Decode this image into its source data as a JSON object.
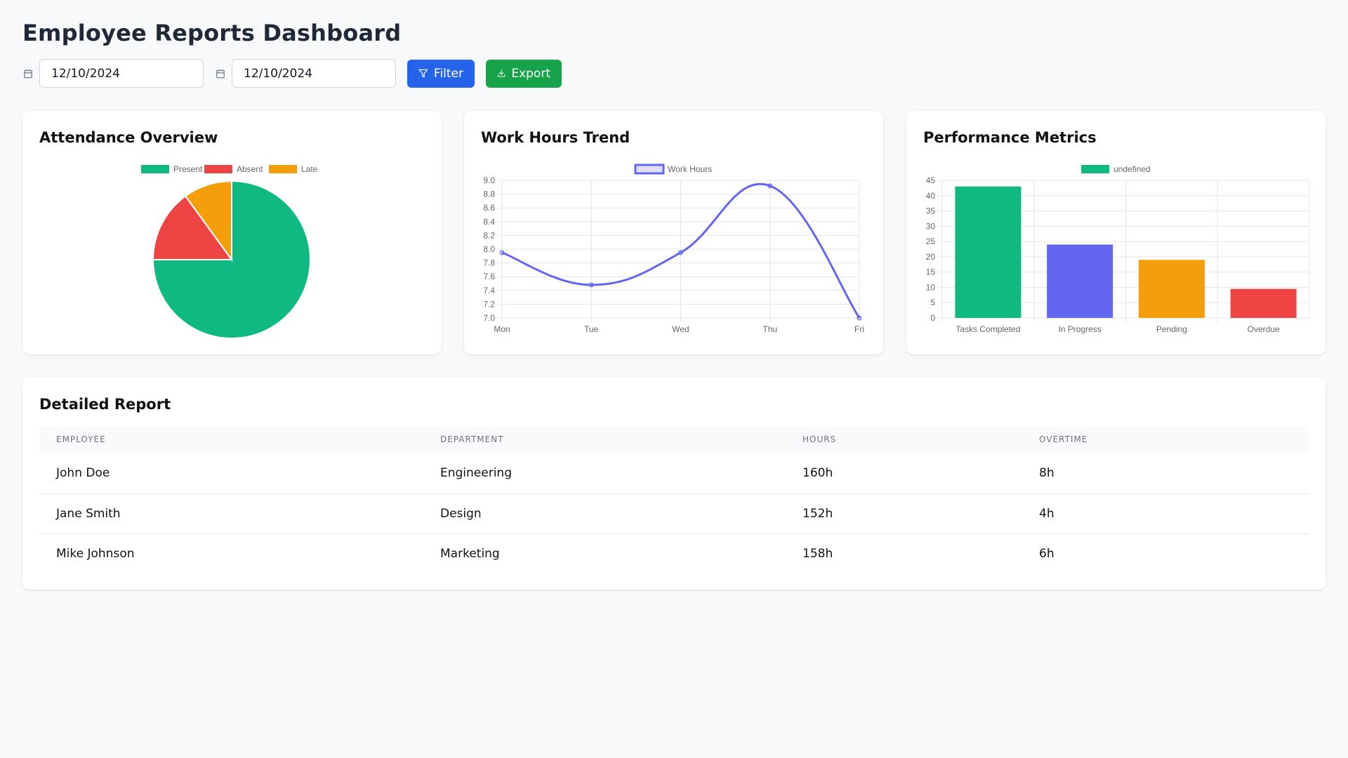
{
  "page": {
    "title": "Employee Reports Dashboard"
  },
  "toolbar": {
    "start_date": "12/10/2024",
    "end_date": "12/10/2024",
    "filter_label": "Filter",
    "export_label": "Export"
  },
  "cards": {
    "attendance_title": "Attendance Overview",
    "workhours_title": "Work Hours Trend",
    "performance_title": "Performance Metrics"
  },
  "chart_data": [
    {
      "type": "pie",
      "labels": [
        "Present",
        "Absent",
        "Late"
      ],
      "values": [
        75,
        15,
        10
      ],
      "colors": [
        "#10b981",
        "#ef4444",
        "#f59e0b"
      ],
      "legend": "top"
    },
    {
      "type": "line",
      "categories": [
        "Mon",
        "Tue",
        "Wed",
        "Thu",
        "Fri"
      ],
      "series": [
        {
          "name": "Work Hours",
          "values": [
            7.95,
            7.48,
            7.95,
            8.92,
            7.0
          ]
        }
      ],
      "ylim": [
        7.0,
        9.0
      ],
      "yticks": [
        "9.0",
        "8.8",
        "8.6",
        "8.4",
        "8.2",
        "8.0",
        "7.8",
        "7.6",
        "7.4",
        "7.2",
        "7.0"
      ],
      "color": "#6366f1",
      "grid": true,
      "legend": "top"
    },
    {
      "type": "bar",
      "categories": [
        "Tasks Completed",
        "In Progress",
        "Pending",
        "Overdue"
      ],
      "series": [
        {
          "name": "undefined",
          "values": [
            43,
            24,
            19,
            9.5
          ]
        }
      ],
      "colors": [
        "#10b981",
        "#6366f1",
        "#f59e0b",
        "#ef4444"
      ],
      "ylim": [
        0,
        45
      ],
      "yticks": [
        "45",
        "40",
        "35",
        "30",
        "25",
        "20",
        "15",
        "10",
        "5",
        "0"
      ],
      "grid": true,
      "legend": "top"
    }
  ],
  "report": {
    "title": "Detailed Report",
    "columns": [
      "EMPLOYEE",
      "DEPARTMENT",
      "HOURS",
      "OVERTIME"
    ],
    "rows": [
      [
        "John Doe",
        "Engineering",
        "160h",
        "8h"
      ],
      [
        "Jane Smith",
        "Design",
        "152h",
        "4h"
      ],
      [
        "Mike Johnson",
        "Marketing",
        "158h",
        "6h"
      ]
    ]
  }
}
